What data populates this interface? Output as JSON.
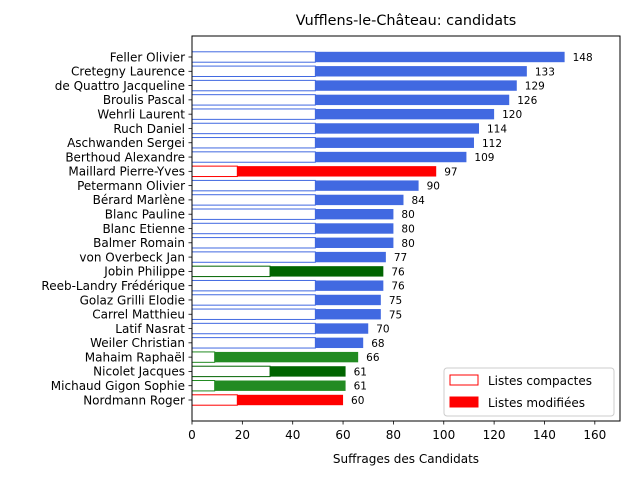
{
  "chart_data": {
    "type": "bar",
    "orientation": "horizontal",
    "title": "Vufflens-le-Château: candidats",
    "xlabel": "Suffrages des Candidats",
    "ylabel": "",
    "xlim": [
      0,
      170
    ],
    "xticks": [
      0,
      20,
      40,
      60,
      80,
      100,
      120,
      140,
      160
    ],
    "grid": false,
    "legend": {
      "placement": "lower-right",
      "entries": [
        {
          "label": "Listes compactes",
          "style": "outline"
        },
        {
          "label": "Listes modifiées",
          "style": "filled"
        }
      ]
    },
    "colors": {
      "blue": "#4169e1",
      "red": "#ff0000",
      "green": "#228b22",
      "darkgreen": "#006400"
    },
    "candidates": [
      {
        "name": "Feller Olivier",
        "total": 148,
        "compact": 49,
        "color": "blue"
      },
      {
        "name": "Cretegny Laurence",
        "total": 133,
        "compact": 49,
        "color": "blue"
      },
      {
        "name": "de Quattro Jacqueline",
        "total": 129,
        "compact": 49,
        "color": "blue"
      },
      {
        "name": "Broulis Pascal",
        "total": 126,
        "compact": 49,
        "color": "blue"
      },
      {
        "name": "Wehrli Laurent",
        "total": 120,
        "compact": 49,
        "color": "blue"
      },
      {
        "name": "Ruch Daniel",
        "total": 114,
        "compact": 49,
        "color": "blue"
      },
      {
        "name": "Aschwanden Sergei",
        "total": 112,
        "compact": 49,
        "color": "blue"
      },
      {
        "name": "Berthoud Alexandre",
        "total": 109,
        "compact": 49,
        "color": "blue"
      },
      {
        "name": "Maillard Pierre-Yves",
        "total": 97,
        "compact": 18,
        "color": "red"
      },
      {
        "name": "Petermann Olivier",
        "total": 90,
        "compact": 49,
        "color": "blue"
      },
      {
        "name": "Bérard Marlène",
        "total": 84,
        "compact": 49,
        "color": "blue"
      },
      {
        "name": "Blanc Pauline",
        "total": 80,
        "compact": 49,
        "color": "blue"
      },
      {
        "name": "Blanc Etienne",
        "total": 80,
        "compact": 49,
        "color": "blue"
      },
      {
        "name": "Balmer Romain",
        "total": 80,
        "compact": 49,
        "color": "blue"
      },
      {
        "name": "von Overbeck Jan",
        "total": 77,
        "compact": 49,
        "color": "blue"
      },
      {
        "name": "Jobin Philippe",
        "total": 76,
        "compact": 31,
        "color": "darkgreen"
      },
      {
        "name": "Reeb-Landry Frédérique",
        "total": 76,
        "compact": 49,
        "color": "blue"
      },
      {
        "name": "Golaz Grilli Elodie",
        "total": 75,
        "compact": 49,
        "color": "blue"
      },
      {
        "name": "Carrel Matthieu",
        "total": 75,
        "compact": 49,
        "color": "blue"
      },
      {
        "name": "Latif Nasrat",
        "total": 70,
        "compact": 49,
        "color": "blue"
      },
      {
        "name": "Weiler Christian",
        "total": 68,
        "compact": 49,
        "color": "blue"
      },
      {
        "name": "Mahaim Raphaël",
        "total": 66,
        "compact": 9,
        "color": "green"
      },
      {
        "name": "Nicolet Jacques",
        "total": 61,
        "compact": 31,
        "color": "darkgreen"
      },
      {
        "name": "Michaud Gigon Sophie",
        "total": 61,
        "compact": 9,
        "color": "green"
      },
      {
        "name": "Nordmann Roger",
        "total": 60,
        "compact": 18,
        "color": "red"
      }
    ]
  }
}
